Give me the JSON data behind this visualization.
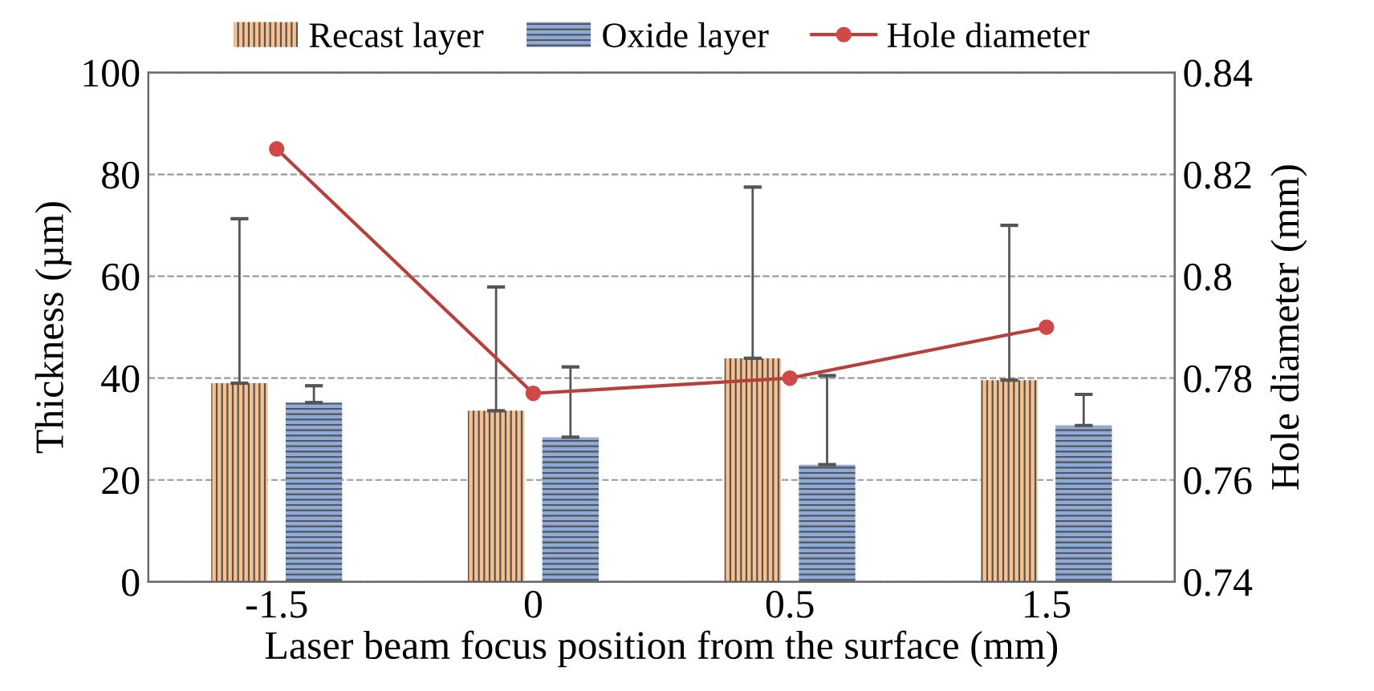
{
  "chart_data": {
    "type": "bar",
    "xlabel": "Laser beam focus position from the surface (mm)",
    "ylabel": "Thickness (µm)",
    "y2label": "Hole diameter (mm)",
    "categories": [
      "-1.5",
      "0",
      "0.5",
      "1.5"
    ],
    "series": [
      {
        "name": "Recast layer",
        "color": "#f9c08e",
        "values": [
          39,
          33.6,
          43.9,
          39.6
        ],
        "errors": [
          [
            39,
            71.3
          ],
          [
            33.6,
            57.9
          ],
          [
            43.9,
            77.5
          ],
          [
            39.6,
            70
          ]
        ]
      },
      {
        "name": "Oxide layer",
        "color": "#8eaadb",
        "values": [
          35.2,
          28.4,
          23,
          30.7
        ],
        "errors": [
          [
            35.2,
            38.5
          ],
          [
            28.4,
            42.2
          ],
          [
            23,
            40.5
          ],
          [
            30.7,
            36.8
          ]
        ]
      },
      {
        "name": "Hole diameter",
        "type": "line",
        "axis": "y2",
        "color": "#b8403c",
        "marker": "circle",
        "line_style": "solid",
        "values": [
          0.825,
          0.777,
          0.78,
          0.79
        ]
      }
    ],
    "ylim": [
      0,
      100
    ],
    "yticks": [
      0,
      20,
      40,
      60,
      80,
      100
    ],
    "y2lim": [
      0.74,
      0.84
    ],
    "y2ticks": [
      {
        "value": 0.74,
        "label": "0.74"
      },
      {
        "value": 0.76,
        "label": "0.76"
      },
      {
        "value": 0.78,
        "label": "0.78"
      },
      {
        "value": 0.8,
        "label": "0.8"
      },
      {
        "value": 0.82,
        "label": "0.82"
      },
      {
        "value": 0.84,
        "label": "0.84"
      }
    ],
    "grid": "y",
    "legend": "top"
  }
}
